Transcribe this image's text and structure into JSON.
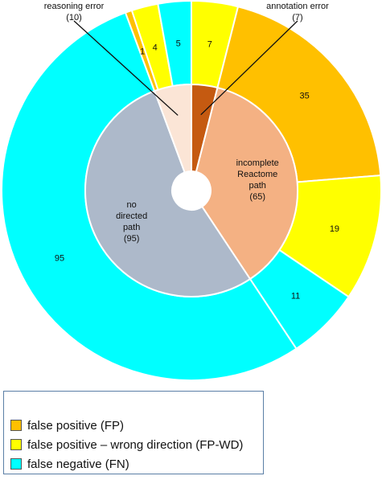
{
  "chart_data": {
    "type": "pie",
    "variant": "nested-donut",
    "inner_ring": {
      "slices": [
        {
          "label": "annotation error",
          "value": 7,
          "display": "annotation error\n(7)",
          "color": "#c55a11"
        },
        {
          "label": "incomplete Reactome path",
          "value": 65,
          "display": "incomplete\nReactome\npath\n(65)",
          "color": "#f4b183"
        },
        {
          "label": "no directed path",
          "value": 95,
          "display": "no\ndirected\npath\n(95)",
          "color": "#adb9ca"
        },
        {
          "label": "reasoning error",
          "value": 10,
          "display": "reasoning error\n(10)",
          "color": "#fbe5d6"
        }
      ]
    },
    "outer_ring": {
      "slices": [
        {
          "parent": "annotation error",
          "category": "false positive – wrong direction (FP-WD)",
          "value": 7,
          "label": "7",
          "color": "#ffff00"
        },
        {
          "parent": "incomplete Reactome path",
          "category": "false positive (FP)",
          "value": 35,
          "label": "35",
          "color": "#ffc000"
        },
        {
          "parent": "incomplete Reactome path",
          "category": "false positive – wrong direction (FP-WD)",
          "value": 19,
          "label": "19",
          "color": "#ffff00"
        },
        {
          "parent": "incomplete Reactome path",
          "category": "false negative (FN)",
          "value": 11,
          "label": "11",
          "color": "#00ffff"
        },
        {
          "parent": "no directed path",
          "category": "false negative (FN)",
          "value": 95,
          "label": "95",
          "color": "#00ffff"
        },
        {
          "parent": "reasoning error",
          "category": "false positive (FP)",
          "value": 1,
          "label": "1",
          "color": "#ffc000"
        },
        {
          "parent": "reasoning error",
          "category": "false positive – wrong direction (FP-WD)",
          "value": 4,
          "label": "4",
          "color": "#ffff00"
        },
        {
          "parent": "reasoning error",
          "category": "false negative (FN)",
          "value": 5,
          "label": "5",
          "color": "#00ffff"
        }
      ]
    },
    "callouts": [
      "annotation error",
      "reasoning error"
    ],
    "legend": {
      "placement": "bottom-left",
      "entries": [
        {
          "label": "false positive (FP)",
          "color": "#ffc000"
        },
        {
          "label": "false positive – wrong direction (FP-WD)",
          "color": "#ffff00"
        },
        {
          "label": "false negative (FN)",
          "color": "#00ffff"
        }
      ]
    }
  }
}
